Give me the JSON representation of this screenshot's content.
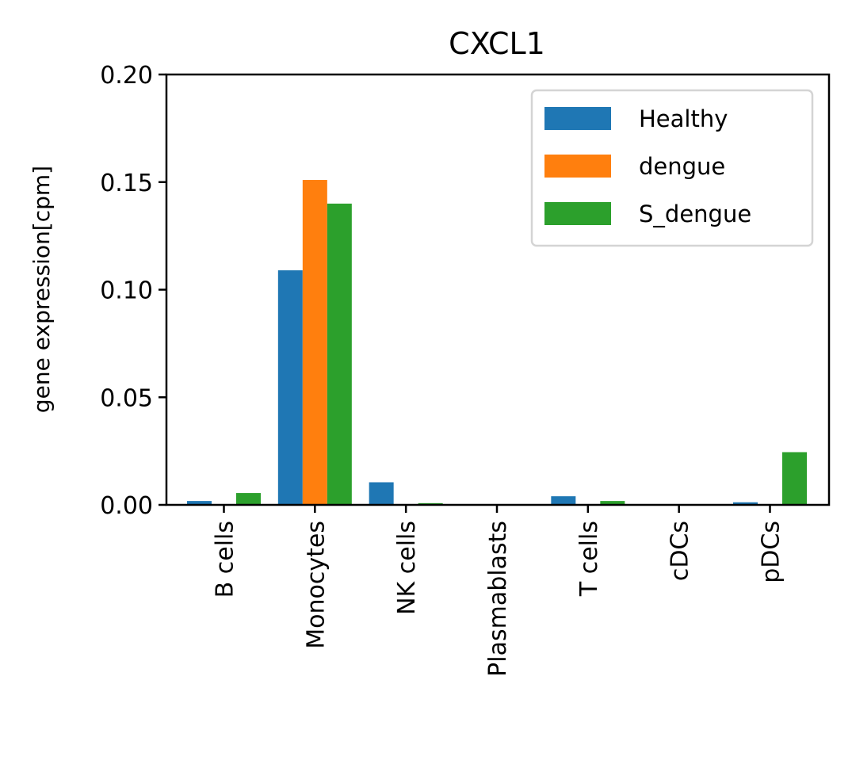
{
  "chart_data": {
    "type": "bar",
    "title": "CXCL1",
    "xlabel": "",
    "ylabel": "gene expression[cpm]",
    "ylim": [
      0,
      0.2
    ],
    "yticks": [
      0.0,
      0.05,
      0.1,
      0.15,
      0.2
    ],
    "ytick_labels": [
      "0.00",
      "0.05",
      "0.10",
      "0.15",
      "0.20"
    ],
    "categories": [
      "B cells",
      "Monocytes",
      "NK cells",
      "Plasmablasts",
      "T cells",
      "cDCs",
      "pDCs"
    ],
    "series": [
      {
        "name": "Healthy",
        "color": "#1f77b4",
        "values": [
          0.0018,
          0.109,
          0.0105,
          0.0,
          0.004,
          0.0,
          0.0012
        ]
      },
      {
        "name": "dengue",
        "color": "#ff7f0e",
        "values": [
          0.0,
          0.151,
          0.0,
          0.0,
          0.0,
          0.0,
          0.0
        ]
      },
      {
        "name": "S_dengue",
        "color": "#2ca02c",
        "values": [
          0.0055,
          0.14,
          0.0008,
          0.0,
          0.0018,
          0.0,
          0.0245
        ]
      }
    ],
    "grid": false,
    "legend_position": "top-right"
  }
}
